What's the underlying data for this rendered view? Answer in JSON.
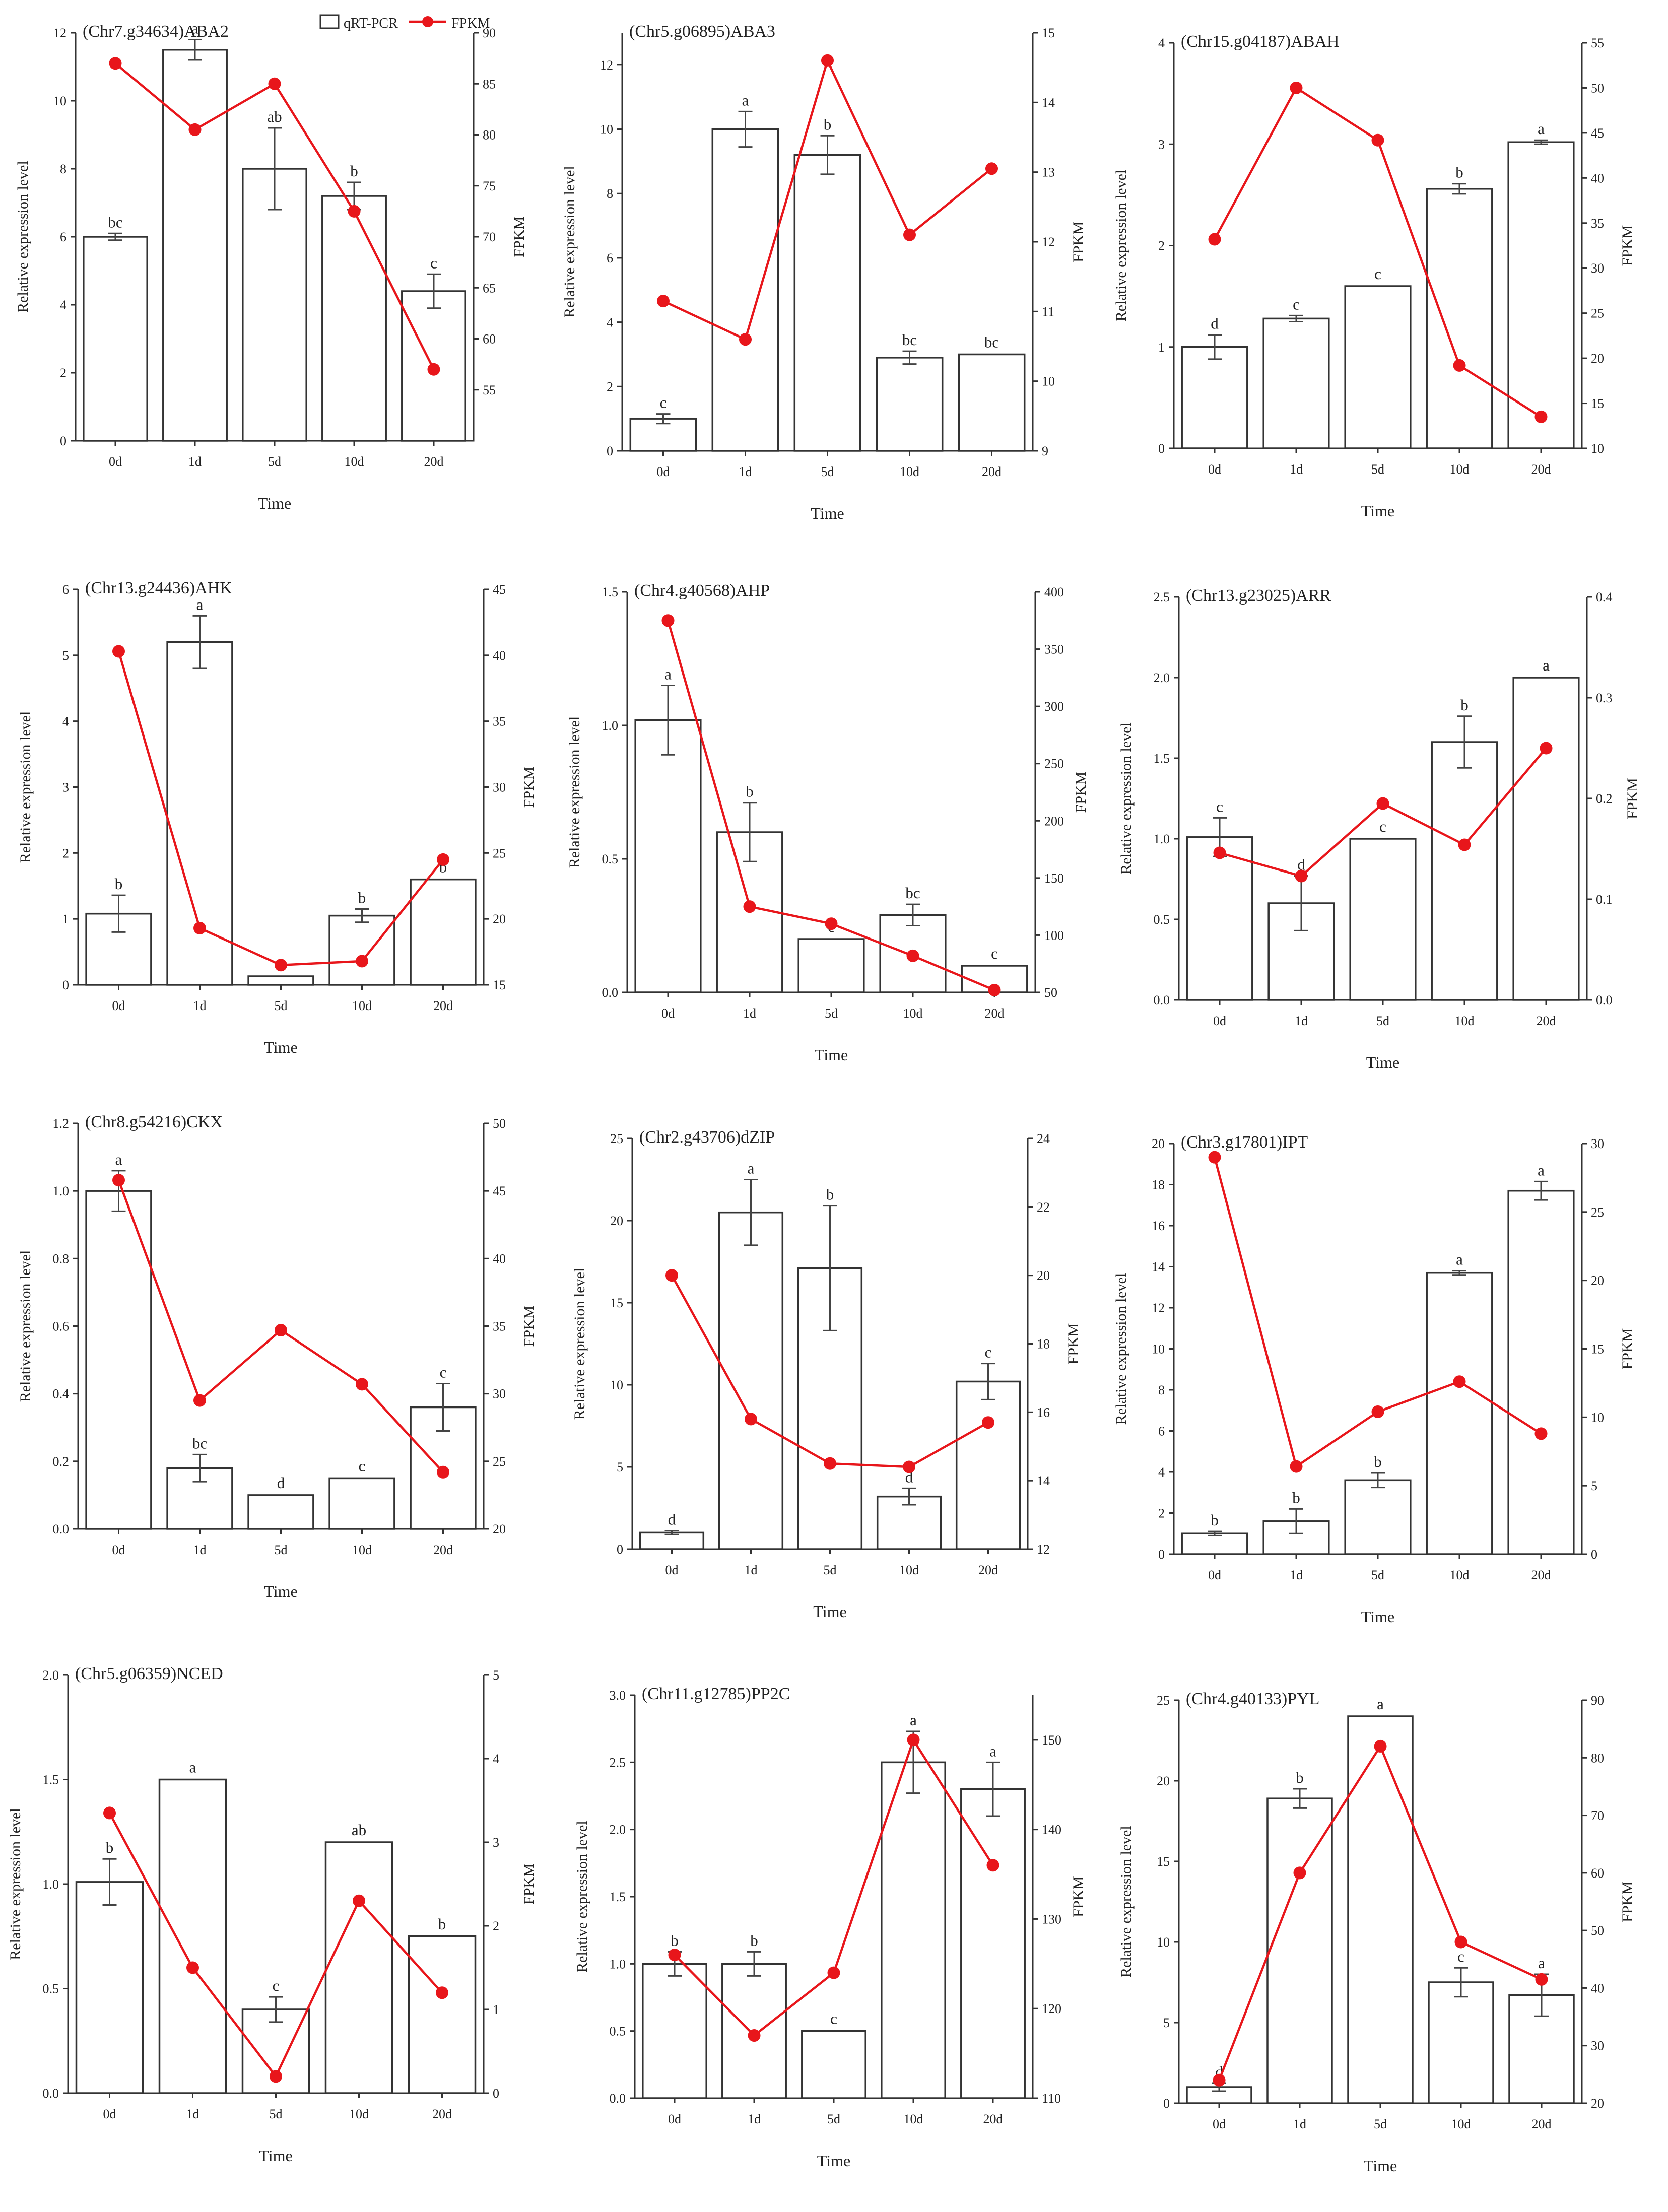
{
  "legend": {
    "bar_label": "qRT-PCR",
    "line_label": "FPKM"
  },
  "colors": {
    "line": "#e8161b",
    "bar_fill": "#ffffff",
    "axis": "#333333"
  },
  "chart_data": [
    {
      "type": "bar",
      "title": "(Chr7.g34634)ABA2",
      "xlabel": "Time",
      "ylabel": "Relative expression level",
      "y2label": "FPKM",
      "categories": [
        "0d",
        "1d",
        "5d",
        "10d",
        "20d"
      ],
      "ylim": [
        0,
        12
      ],
      "yticks": [
        0,
        2,
        4,
        6,
        8,
        10,
        12
      ],
      "y2lim": [
        50,
        90
      ],
      "y2ticks": [
        55,
        60,
        65,
        70,
        75,
        80,
        85,
        90
      ],
      "series": [
        {
          "name": "qRT-PCR",
          "values": [
            6.0,
            11.5,
            8.0,
            7.2,
            4.4
          ],
          "errors": [
            0.1,
            0.3,
            1.2,
            0.4,
            0.5
          ],
          "labels": [
            "bc",
            "a",
            "ab",
            "b",
            "c"
          ]
        },
        {
          "name": "FPKM",
          "values": [
            87.0,
            80.5,
            85.0,
            72.5,
            57.0
          ]
        }
      ]
    },
    {
      "type": "bar",
      "title": "(Chr5.g06895)ABA3",
      "xlabel": "Time",
      "ylabel": "Relative expression level",
      "y2label": "FPKM",
      "categories": [
        "0d",
        "1d",
        "5d",
        "10d",
        "20d"
      ],
      "ylim": [
        0,
        13
      ],
      "yticks": [
        0,
        2,
        4,
        6,
        8,
        10,
        12
      ],
      "y2lim": [
        9,
        15
      ],
      "y2ticks": [
        9,
        10,
        11,
        12,
        13,
        14,
        15
      ],
      "series": [
        {
          "name": "qRT-PCR",
          "values": [
            1.0,
            10.0,
            9.2,
            2.9,
            3.0
          ],
          "errors": [
            0.15,
            0.55,
            0.6,
            0.2,
            0
          ],
          "labels": [
            "c",
            "a",
            "b",
            "bc",
            "bc"
          ]
        },
        {
          "name": "FPKM",
          "values": [
            11.15,
            10.6,
            14.6,
            12.1,
            13.05
          ]
        }
      ]
    },
    {
      "type": "bar",
      "title": "(Chr15.g04187)ABAH",
      "xlabel": "Time",
      "ylabel": "Relative expression level",
      "y2label": "FPKM",
      "categories": [
        "0d",
        "1d",
        "5d",
        "10d",
        "20d"
      ],
      "ylim": [
        0,
        4
      ],
      "yticks": [
        0,
        1,
        2,
        3,
        4
      ],
      "y2lim": [
        10,
        55
      ],
      "y2ticks": [
        10,
        15,
        20,
        25,
        30,
        35,
        40,
        45,
        50,
        55
      ],
      "series": [
        {
          "name": "qRT-PCR",
          "values": [
            1.0,
            1.28,
            1.6,
            2.56,
            3.02
          ],
          "errors": [
            0.12,
            0.03,
            0,
            0.05,
            0.02
          ],
          "labels": [
            "d",
            "c",
            "c",
            "b",
            "a"
          ]
        },
        {
          "name": "FPKM",
          "values": [
            33.2,
            50.0,
            44.2,
            19.2,
            13.5
          ]
        }
      ]
    },
    {
      "type": "bar",
      "title": "(Chr13.g24436)AHK",
      "xlabel": "Time",
      "ylabel": "Relative expression level",
      "y2label": "FPKM",
      "categories": [
        "0d",
        "1d",
        "5d",
        "10d",
        "20d"
      ],
      "ylim": [
        0,
        6
      ],
      "yticks": [
        0,
        1,
        2,
        3,
        4,
        5,
        6
      ],
      "y2lim": [
        15,
        45
      ],
      "y2ticks": [
        15,
        20,
        25,
        30,
        35,
        40,
        45
      ],
      "series": [
        {
          "name": "qRT-PCR",
          "values": [
            1.08,
            5.2,
            0.13,
            1.05,
            1.6
          ],
          "errors": [
            0.28,
            0.4,
            0,
            0.1,
            0
          ],
          "labels": [
            "b",
            "a",
            "",
            "b",
            "b"
          ]
        },
        {
          "name": "FPKM",
          "values": [
            40.3,
            19.3,
            16.5,
            16.8,
            24.5
          ]
        }
      ]
    },
    {
      "type": "bar",
      "title": "(Chr4.g40568)AHP",
      "xlabel": "Time",
      "ylabel": "Relative expression level",
      "y2label": "FPKM",
      "categories": [
        "0d",
        "1d",
        "5d",
        "10d",
        "20d"
      ],
      "ylim": [
        0,
        1.5
      ],
      "yticks": [
        0.0,
        0.5,
        1.0,
        1.5
      ],
      "y2lim": [
        50,
        400
      ],
      "y2ticks": [
        50,
        100,
        150,
        200,
        250,
        300,
        350,
        400
      ],
      "series": [
        {
          "name": "qRT-PCR",
          "values": [
            1.02,
            0.6,
            0.2,
            0.29,
            0.1
          ],
          "errors": [
            0.13,
            0.11,
            0,
            0.04,
            0
          ],
          "labels": [
            "a",
            "b",
            "c",
            "bc",
            "c"
          ]
        },
        {
          "name": "FPKM",
          "values": [
            375,
            125,
            110,
            82,
            52
          ]
        }
      ]
    },
    {
      "type": "bar",
      "title": "(Chr13.g23025)ARR",
      "xlabel": "Time",
      "ylabel": "Relative expression level",
      "y2label": "FPKM",
      "categories": [
        "0d",
        "1d",
        "5d",
        "10d",
        "20d"
      ],
      "ylim": [
        0,
        2.5
      ],
      "yticks": [
        0.0,
        0.5,
        1.0,
        1.5,
        2.0,
        2.5
      ],
      "y2lim": [
        0,
        0.4
      ],
      "y2ticks": [
        0.0,
        0.1,
        0.2,
        0.3,
        0.4
      ],
      "series": [
        {
          "name": "qRT-PCR",
          "values": [
            1.01,
            0.6,
            1.0,
            1.6,
            2.0
          ],
          "errors": [
            0.12,
            0.17,
            0,
            0.16,
            0
          ],
          "labels": [
            "c",
            "d",
            "c",
            "b",
            "a"
          ]
        },
        {
          "name": "FPKM",
          "values": [
            0.146,
            0.123,
            0.195,
            0.154,
            0.25
          ]
        }
      ]
    },
    {
      "type": "bar",
      "title": "(Chr8.g54216)CKX",
      "xlabel": "Time",
      "ylabel": "Relative expression level",
      "y2label": "FPKM",
      "categories": [
        "0d",
        "1d",
        "5d",
        "10d",
        "20d"
      ],
      "ylim": [
        0,
        1.2
      ],
      "yticks": [
        0.0,
        0.2,
        0.4,
        0.6,
        0.8,
        1.0,
        1.2
      ],
      "y2lim": [
        20,
        50
      ],
      "y2ticks": [
        20,
        25,
        30,
        35,
        40,
        45,
        50
      ],
      "series": [
        {
          "name": "qRT-PCR",
          "values": [
            1.0,
            0.18,
            0.1,
            0.15,
            0.36
          ],
          "errors": [
            0.06,
            0.04,
            0,
            0,
            0.07
          ],
          "labels": [
            "a",
            "bc",
            "d",
            "c",
            "c"
          ]
        },
        {
          "name": "FPKM",
          "values": [
            45.8,
            29.5,
            34.7,
            30.7,
            24.2
          ]
        }
      ]
    },
    {
      "type": "bar",
      "title": "(Chr2.g43706)dZIP",
      "xlabel": "Time",
      "ylabel": "Relative expression level",
      "y2label": "FPKM",
      "categories": [
        "0d",
        "1d",
        "5d",
        "10d",
        "20d"
      ],
      "ylim": [
        0,
        25
      ],
      "yticks": [
        0,
        5,
        10,
        15,
        20,
        25
      ],
      "y2lim": [
        12,
        24
      ],
      "y2ticks": [
        12,
        14,
        16,
        18,
        20,
        22,
        24
      ],
      "series": [
        {
          "name": "qRT-PCR",
          "values": [
            1.0,
            20.5,
            17.1,
            3.2,
            10.2
          ],
          "errors": [
            0.12,
            2.0,
            3.8,
            0.5,
            1.1
          ],
          "labels": [
            "d",
            "a",
            "b",
            "d",
            "c"
          ]
        },
        {
          "name": "FPKM",
          "values": [
            20.0,
            15.8,
            14.5,
            14.4,
            15.7
          ]
        }
      ]
    },
    {
      "type": "bar",
      "title": "(Chr3.g17801)IPT",
      "xlabel": "Time",
      "ylabel": "Relative expression level",
      "y2label": "FPKM",
      "categories": [
        "0d",
        "1d",
        "5d",
        "10d",
        "20d"
      ],
      "ylim": [
        0,
        20
      ],
      "yticks": [
        0,
        2,
        4,
        6,
        8,
        10,
        12,
        14,
        16,
        18,
        20
      ],
      "y2lim": [
        0,
        30
      ],
      "y2ticks": [
        0,
        5,
        10,
        15,
        20,
        25,
        30
      ],
      "series": [
        {
          "name": "qRT-PCR",
          "values": [
            1.0,
            1.6,
            3.6,
            13.7,
            17.7
          ],
          "errors": [
            0.1,
            0.6,
            0.35,
            0.1,
            0.45
          ],
          "labels": [
            "b",
            "b",
            "b",
            "a",
            "a"
          ]
        },
        {
          "name": "FPKM",
          "values": [
            29.0,
            6.4,
            10.4,
            12.6,
            8.8
          ]
        }
      ]
    },
    {
      "type": "bar",
      "title": "(Chr5.g06359)NCED",
      "xlabel": "Time",
      "ylabel": "Relative expression level",
      "y2label": "FPKM",
      "categories": [
        "0d",
        "1d",
        "5d",
        "10d",
        "20d"
      ],
      "ylim": [
        0,
        2.0
      ],
      "yticks": [
        0.0,
        0.5,
        1.0,
        1.5,
        2.0
      ],
      "y2lim": [
        0,
        5
      ],
      "y2ticks": [
        0,
        1,
        2,
        3,
        4,
        5
      ],
      "series": [
        {
          "name": "qRT-PCR",
          "values": [
            1.01,
            1.5,
            0.4,
            1.2,
            0.75
          ],
          "errors": [
            0.11,
            0,
            0.06,
            0,
            0
          ],
          "labels": [
            "b",
            "a",
            "c",
            "ab",
            "b"
          ]
        },
        {
          "name": "FPKM",
          "values": [
            3.35,
            1.5,
            0.2,
            2.3,
            1.2
          ]
        }
      ]
    },
    {
      "type": "bar",
      "title": "(Chr11.g12785)PP2C",
      "xlabel": "Time",
      "ylabel": "Relative expression level",
      "y2label": "FPKM",
      "categories": [
        "0d",
        "1d",
        "5d",
        "10d",
        "20d"
      ],
      "ylim": [
        0,
        3.0
      ],
      "yticks": [
        0.0,
        0.5,
        1.0,
        1.5,
        2.0,
        2.5,
        3.0
      ],
      "y2lim": [
        110,
        155
      ],
      "y2ticks": [
        110,
        120,
        130,
        140,
        150
      ],
      "series": [
        {
          "name": "qRT-PCR",
          "values": [
            1.0,
            1.0,
            0.5,
            2.5,
            2.3
          ],
          "errors": [
            0.09,
            0.09,
            0,
            0.23,
            0.2
          ],
          "labels": [
            "b",
            "b",
            "c",
            "a",
            "a"
          ]
        },
        {
          "name": "FPKM",
          "values": [
            126,
            117,
            124,
            150,
            136
          ]
        }
      ]
    },
    {
      "type": "bar",
      "title": "(Chr4.g40133)PYL",
      "xlabel": "Time",
      "ylabel": "Relative expression level",
      "y2label": "FPKM",
      "categories": [
        "0d",
        "1d",
        "5d",
        "10d",
        "20d"
      ],
      "ylim": [
        0,
        25
      ],
      "yticks": [
        0,
        5,
        10,
        15,
        20,
        25
      ],
      "y2lim": [
        20,
        90
      ],
      "y2ticks": [
        20,
        30,
        40,
        50,
        60,
        70,
        80,
        90
      ],
      "series": [
        {
          "name": "qRT-PCR",
          "values": [
            1.0,
            18.9,
            24.0,
            7.5,
            6.7
          ],
          "errors": [
            0.25,
            0.6,
            0,
            0.9,
            1.3
          ],
          "labels": [
            "d",
            "b",
            "a",
            "c",
            "a"
          ]
        },
        {
          "name": "FPKM",
          "values": [
            24.0,
            60.0,
            82.0,
            48.0,
            41.5
          ]
        }
      ]
    }
  ]
}
